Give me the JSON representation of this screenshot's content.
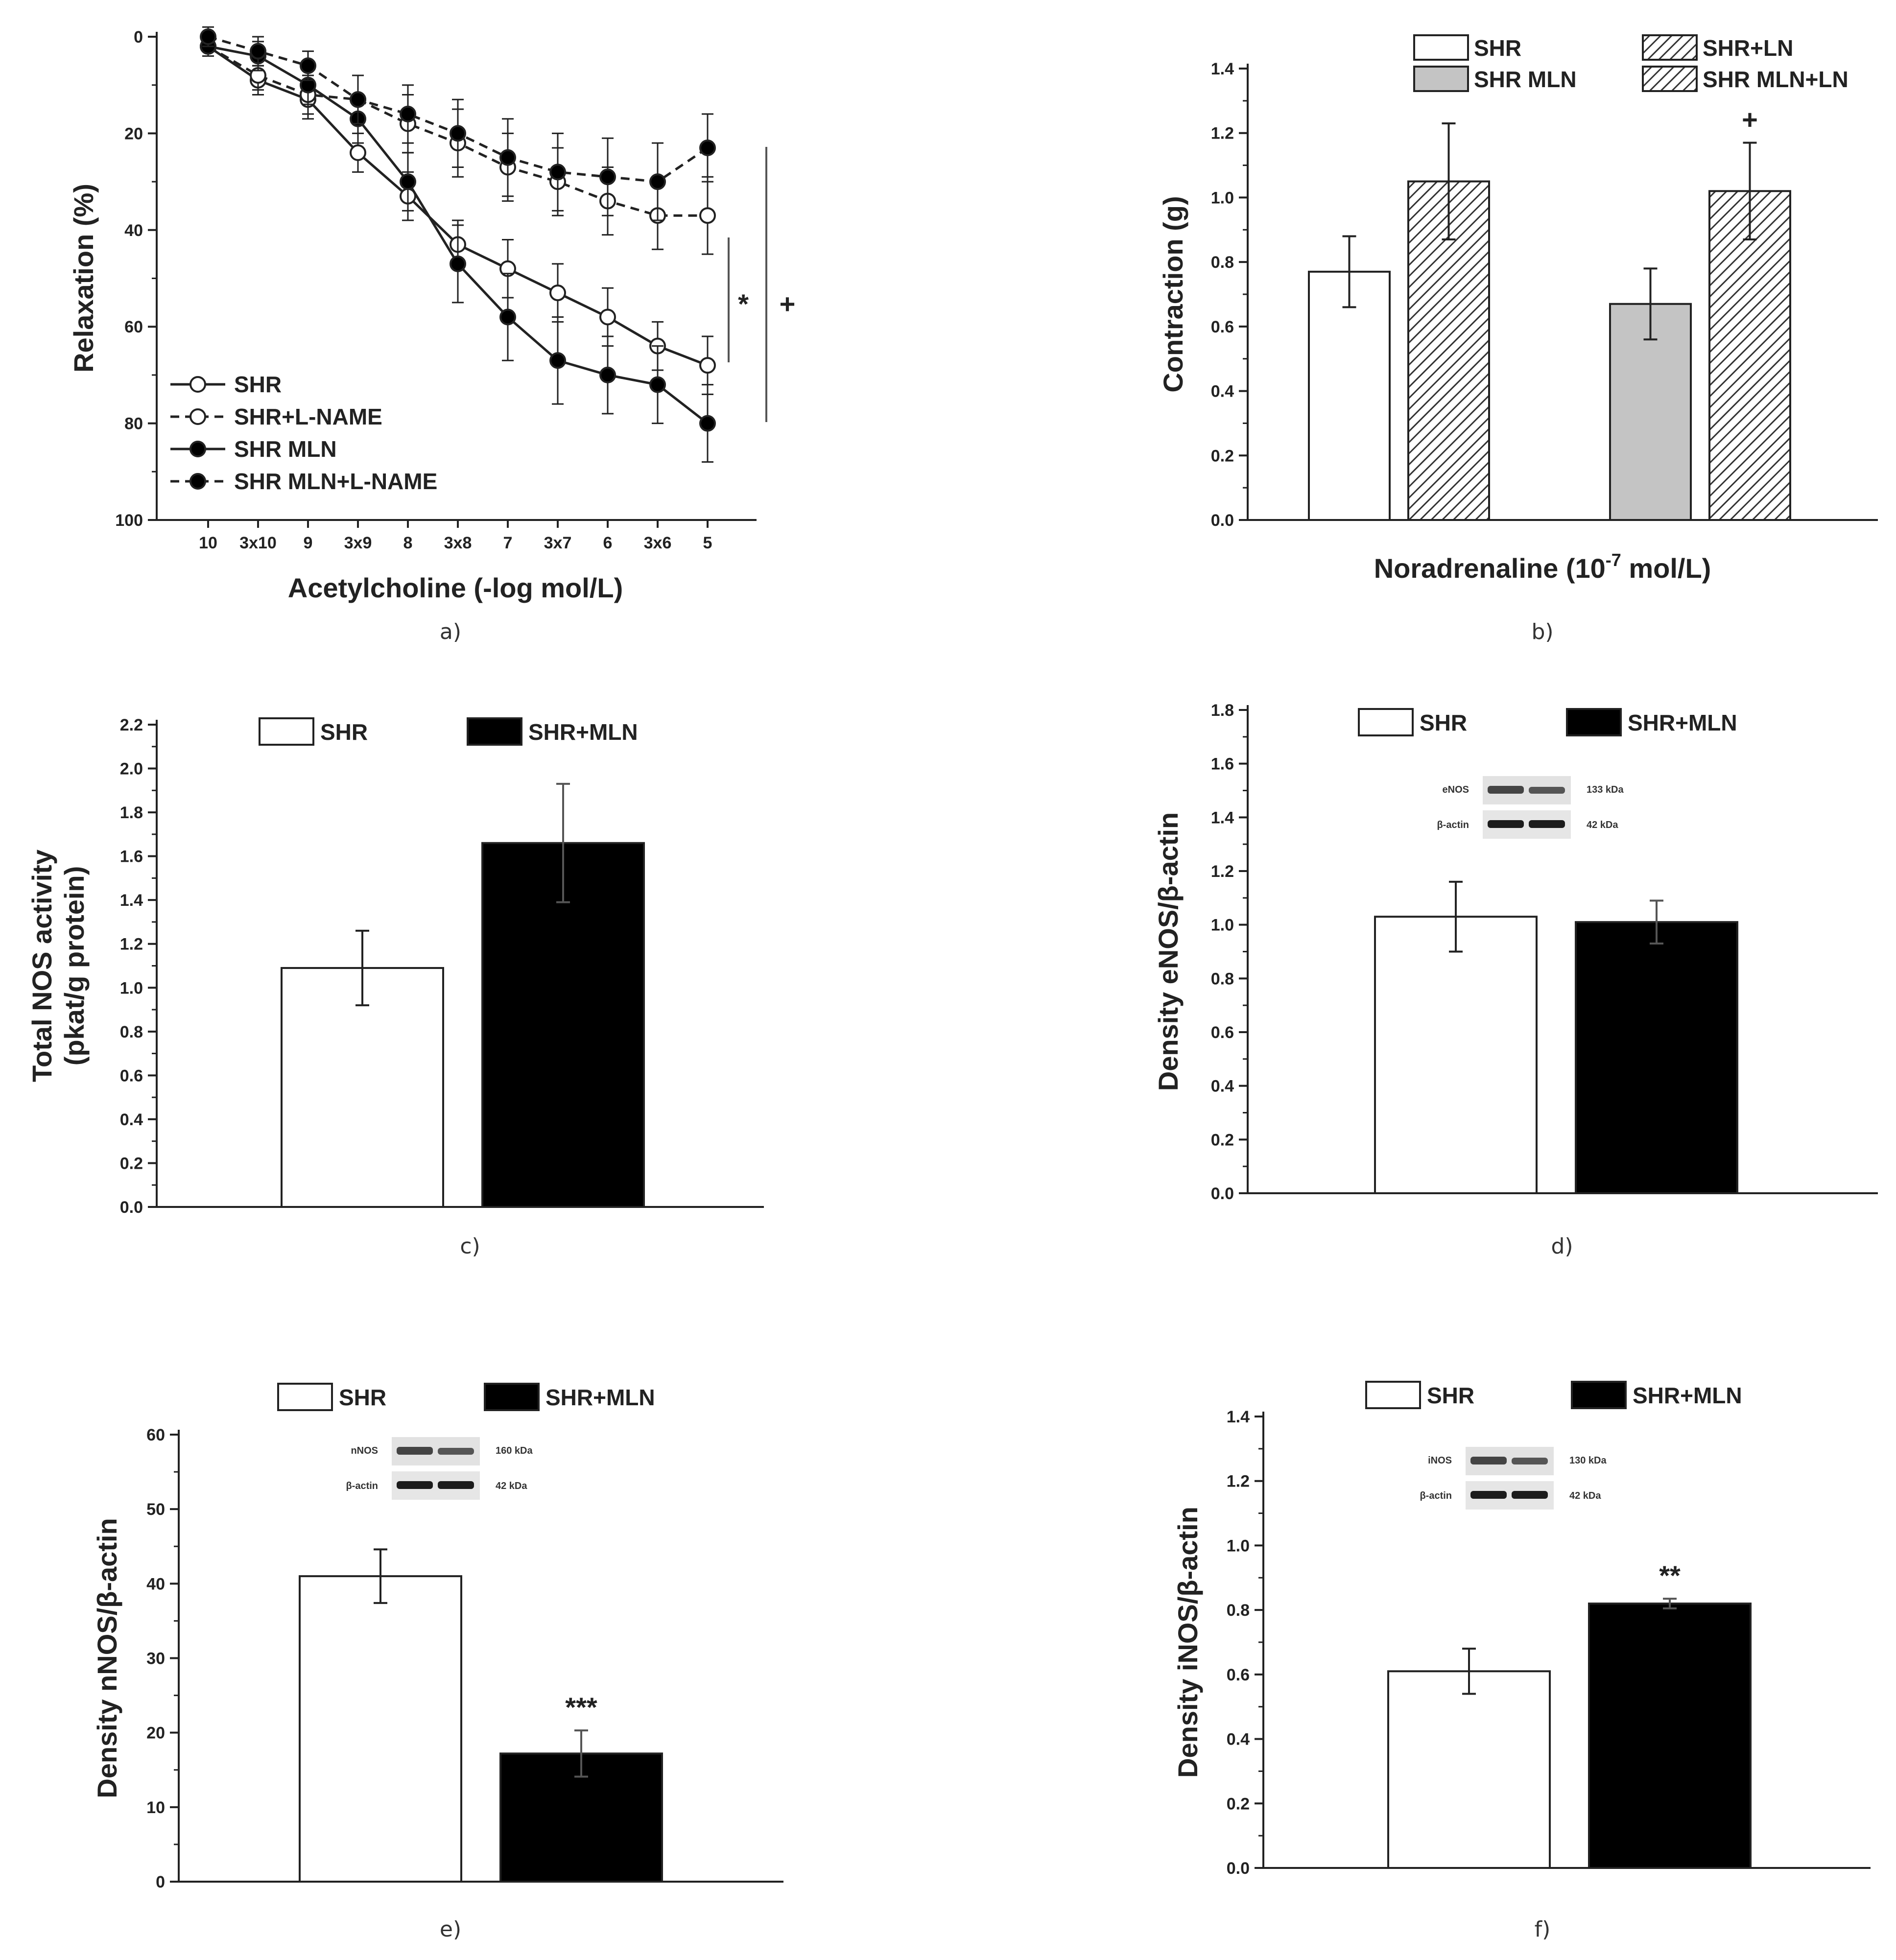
{
  "chart_data": [
    {
      "panel": "a",
      "type": "line",
      "caption": "a)",
      "xlabel": "Acetylcholine (-log mol/L)",
      "ylabel": "Relaxation (%)",
      "categories": [
        "10",
        "3x10",
        "9",
        "3x9",
        "8",
        "3x8",
        "7",
        "3x7",
        "6",
        "3x6",
        "5"
      ],
      "ylim": [
        0,
        100
      ],
      "y_inverted": true,
      "yticks": [
        0,
        20,
        40,
        60,
        80,
        100
      ],
      "series": [
        {
          "name": "SHR",
          "marker": "open",
          "dashed": false,
          "values": [
            2,
            9,
            13,
            24,
            33,
            43,
            48,
            53,
            58,
            64,
            68
          ],
          "err": [
            2,
            3,
            4,
            4,
            5,
            5,
            6,
            6,
            6,
            5,
            6
          ]
        },
        {
          "name": "SHR+L-NAME",
          "marker": "open",
          "dashed": true,
          "values": [
            2,
            8,
            12,
            13,
            18,
            22,
            27,
            30,
            34,
            37,
            37
          ],
          "err": [
            2,
            3,
            4,
            5,
            6,
            7,
            7,
            7,
            7,
            7,
            8
          ]
        },
        {
          "name": "SHR MLN",
          "marker": "filled",
          "dashed": false,
          "values": [
            2,
            4,
            10,
            17,
            30,
            47,
            58,
            67,
            70,
            72,
            80
          ],
          "err": [
            2,
            3,
            4,
            5,
            6,
            8,
            9,
            9,
            8,
            8,
            8
          ]
        },
        {
          "name": "SHR MLN+L-NAME",
          "marker": "filled",
          "dashed": true,
          "values": [
            0,
            3,
            6,
            13,
            16,
            20,
            25,
            28,
            29,
            30,
            23
          ],
          "err": [
            2,
            3,
            3,
            5,
            6,
            7,
            8,
            8,
            8,
            8,
            7
          ]
        }
      ],
      "annotations": [
        "*",
        "+"
      ]
    },
    {
      "panel": "b",
      "type": "bar",
      "caption": "b)",
      "xlabel_main": "Noradrenaline (10",
      "xlabel_exp": "-7",
      "xlabel_tail": " mol/L)",
      "ylabel": "Contraction (g)",
      "ylim": [
        0,
        1.4
      ],
      "yticks": [
        "0.0",
        "0.2",
        "0.4",
        "0.6",
        "0.8",
        "1.0",
        "1.2",
        "1.4"
      ],
      "bars": [
        {
          "name": "SHR",
          "value": 0.77,
          "err": 0.11,
          "fill": "white",
          "annotation": ""
        },
        {
          "name": "SHR+LN",
          "value": 1.05,
          "err": 0.18,
          "fill": "hatch",
          "annotation": ""
        },
        {
          "name": "SHR MLN",
          "value": 0.67,
          "err": 0.11,
          "fill": "gray",
          "annotation": ""
        },
        {
          "name": "SHR MLN+LN",
          "value": 1.02,
          "err": 0.15,
          "fill": "hatch",
          "annotation": "+"
        }
      ],
      "legend": [
        "SHR",
        "SHR+LN",
        "SHR MLN",
        "SHR MLN+LN"
      ]
    },
    {
      "panel": "c",
      "type": "bar",
      "caption": "c)",
      "ylabel_line1": "Total NOS activity",
      "ylabel_line2": "(pkat/g protein)",
      "ylim": [
        0,
        2.2
      ],
      "yticks": [
        "0.0",
        "0.2",
        "0.4",
        "0.6",
        "0.8",
        "1.0",
        "1.2",
        "1.4",
        "1.6",
        "1.8",
        "2.0",
        "2.2"
      ],
      "bars": [
        {
          "name": "SHR",
          "value": 1.09,
          "err": 0.17,
          "fill": "white",
          "annotation": ""
        },
        {
          "name": "SHR+MLN",
          "value": 1.66,
          "err": 0.27,
          "fill": "black",
          "annotation": ""
        }
      ],
      "legend": [
        "SHR",
        "SHR+MLN"
      ]
    },
    {
      "panel": "d",
      "type": "bar",
      "caption": "d)",
      "ylabel": "Density eNOS/β-actin",
      "ylim": [
        0,
        1.8
      ],
      "yticks": [
        "0.0",
        "0.2",
        "0.4",
        "0.6",
        "0.8",
        "1.0",
        "1.2",
        "1.4",
        "1.6",
        "1.8"
      ],
      "bars": [
        {
          "name": "SHR",
          "value": 1.03,
          "err": 0.13,
          "fill": "white",
          "annotation": ""
        },
        {
          "name": "SHR+MLN",
          "value": 1.01,
          "err": 0.08,
          "fill": "black",
          "annotation": ""
        }
      ],
      "legend": [
        "SHR",
        "SHR+MLN"
      ],
      "blot": {
        "top_label": "eNOS",
        "top_kda": "133 kDa",
        "bottom_label": "β-actin",
        "bottom_kda": "42 kDa"
      }
    },
    {
      "panel": "e",
      "type": "bar",
      "caption": "e)",
      "ylabel": "Density nNOS/β-actin",
      "ylim": [
        0,
        60
      ],
      "yticks": [
        "0",
        "10",
        "20",
        "30",
        "40",
        "50",
        "60"
      ],
      "bars": [
        {
          "name": "SHR",
          "value": 41,
          "err": 3.6,
          "fill": "white",
          "annotation": ""
        },
        {
          "name": "SHR+MLN",
          "value": 17.2,
          "err": 3.1,
          "fill": "black",
          "annotation": "***"
        }
      ],
      "legend": [
        "SHR",
        "SHR+MLN"
      ],
      "blot": {
        "top_label": "nNOS",
        "top_kda": "160 kDa",
        "bottom_label": "β-actin",
        "bottom_kda": "42 kDa"
      }
    },
    {
      "panel": "f",
      "type": "bar",
      "caption": "f)",
      "ylabel": "Density iNOS/β-actin",
      "ylim": [
        0,
        1.4
      ],
      "yticks": [
        "0.0",
        "0.2",
        "0.4",
        "0.6",
        "0.8",
        "1.0",
        "1.2",
        "1.4"
      ],
      "bars": [
        {
          "name": "SHR",
          "value": 0.61,
          "err": 0.07,
          "fill": "white",
          "annotation": ""
        },
        {
          "name": "SHR+MLN",
          "value": 0.82,
          "err": 0.015,
          "fill": "black",
          "annotation": "**"
        }
      ],
      "legend": [
        "SHR",
        "SHR+MLN"
      ],
      "blot": {
        "top_label": "iNOS",
        "top_kda": "130 kDa",
        "bottom_label": "β-actin",
        "bottom_kda": "42 kDa"
      }
    }
  ]
}
